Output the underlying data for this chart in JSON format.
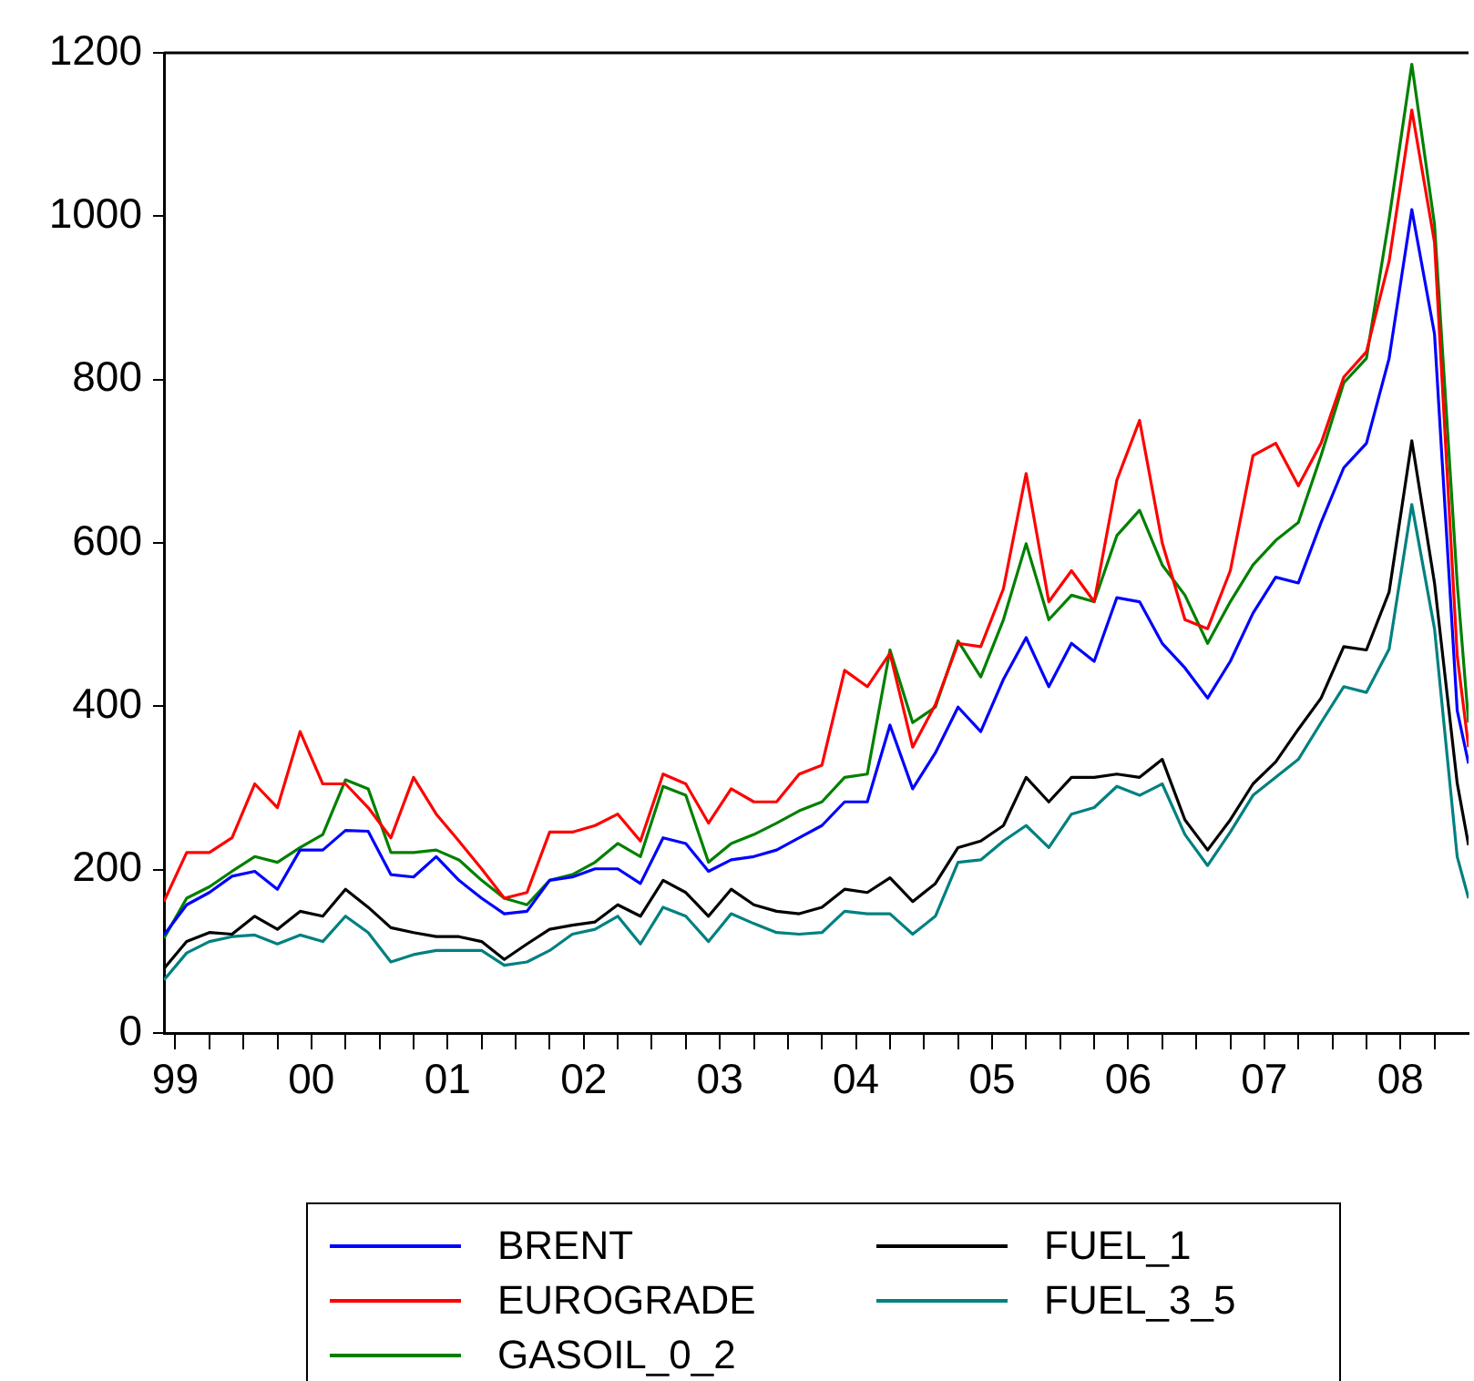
{
  "chart_data": {
    "type": "line",
    "legend": "bottom",
    "x": [
      "1999-06",
      "1999-08",
      "1999-10",
      "1999-12",
      "2000-02",
      "2000-04",
      "2000-06",
      "2000-08",
      "2000-10",
      "2000-12",
      "2001-02",
      "2001-04",
      "2001-06",
      "2001-08",
      "2001-10",
      "2001-12",
      "2002-02",
      "2002-04",
      "2002-06",
      "2002-08",
      "2002-10",
      "2002-12",
      "2003-02",
      "2003-04",
      "2003-06",
      "2003-08",
      "2003-10",
      "2003-12",
      "2004-02",
      "2004-04",
      "2004-06",
      "2004-08",
      "2004-10",
      "2004-12",
      "2005-02",
      "2005-04",
      "2005-06",
      "2005-08",
      "2005-10",
      "2005-12",
      "2006-02",
      "2006-04",
      "2006-06",
      "2006-08",
      "2006-10",
      "2006-12",
      "2007-02",
      "2007-04",
      "2007-06",
      "2007-08",
      "2007-10",
      "2007-12",
      "2008-02",
      "2008-04",
      "2008-06",
      "2008-08",
      "2008-10",
      "2008-12",
      "2009-01"
    ],
    "xlim": [
      "1999-06",
      "2009-01"
    ],
    "xticks": [
      {
        "value": "1999-07",
        "label": "99"
      },
      {
        "value": "1999-10",
        "label": null
      },
      {
        "value": "2000-01",
        "label": null
      },
      {
        "value": "2000-04",
        "label": null
      },
      {
        "value": "2000-07",
        "label": "00"
      },
      {
        "value": "2000-10",
        "label": null
      },
      {
        "value": "2001-01",
        "label": null
      },
      {
        "value": "2001-04",
        "label": null
      },
      {
        "value": "2001-07",
        "label": "01"
      },
      {
        "value": "2001-10",
        "label": null
      },
      {
        "value": "2002-01",
        "label": null
      },
      {
        "value": "2002-04",
        "label": null
      },
      {
        "value": "2002-07",
        "label": "02"
      },
      {
        "value": "2002-10",
        "label": null
      },
      {
        "value": "2003-01",
        "label": null
      },
      {
        "value": "2003-04",
        "label": null
      },
      {
        "value": "2003-07",
        "label": "03"
      },
      {
        "value": "2003-10",
        "label": null
      },
      {
        "value": "2004-01",
        "label": null
      },
      {
        "value": "2004-04",
        "label": null
      },
      {
        "value": "2004-07",
        "label": "04"
      },
      {
        "value": "2004-10",
        "label": null
      },
      {
        "value": "2005-01",
        "label": null
      },
      {
        "value": "2005-04",
        "label": null
      },
      {
        "value": "2005-07",
        "label": "05"
      },
      {
        "value": "2005-10",
        "label": null
      },
      {
        "value": "2006-01",
        "label": null
      },
      {
        "value": "2006-04",
        "label": null
      },
      {
        "value": "2006-07",
        "label": "06"
      },
      {
        "value": "2006-10",
        "label": null
      },
      {
        "value": "2007-01",
        "label": null
      },
      {
        "value": "2007-04",
        "label": null
      },
      {
        "value": "2007-07",
        "label": "07"
      },
      {
        "value": "2007-10",
        "label": null
      },
      {
        "value": "2008-01",
        "label": null
      },
      {
        "value": "2008-04",
        "label": null
      },
      {
        "value": "2008-07",
        "label": "08"
      },
      {
        "value": "2008-10",
        "label": null
      }
    ],
    "ylim": [
      0,
      1200
    ],
    "yticks": [
      0,
      200,
      400,
      600,
      800,
      1000,
      1200
    ],
    "series": [
      {
        "name": "BRENT",
        "color": "#0000ff",
        "values": [
          120,
          157,
          172,
          192,
          198,
          176,
          224,
          224,
          248,
          247,
          194,
          191,
          216,
          187,
          165,
          146,
          149,
          187,
          191,
          201,
          201,
          183,
          239,
          232,
          198,
          212,
          216,
          224,
          239,
          254,
          283,
          283,
          377,
          299,
          343,
          399,
          369,
          433,
          484,
          424,
          477,
          455,
          533,
          528,
          477,
          447,
          410,
          455,
          514,
          558,
          551,
          625,
          692,
          722,
          826,
          1008,
          856,
          395,
          330
        ]
      },
      {
        "name": "EUROGRADE",
        "color": "#ff0000",
        "values": [
          161,
          221,
          221,
          239,
          305,
          276,
          369,
          305,
          305,
          276,
          239,
          313,
          268,
          235,
          201,
          165,
          172,
          246,
          246,
          254,
          268,
          235,
          317,
          305,
          257,
          299,
          283,
          283,
          317,
          328,
          444,
          424,
          465,
          350,
          402,
          477,
          473,
          544,
          685,
          528,
          566,
          528,
          677,
          750,
          600,
          506,
          495,
          566,
          707,
          722,
          670,
          722,
          803,
          834,
          945,
          1130,
          968,
          462,
          350
        ]
      },
      {
        "name": "GASOIL_0_2",
        "color": "#008000",
        "values": [
          116,
          165,
          179,
          198,
          216,
          209,
          227,
          243,
          310,
          299,
          221,
          221,
          224,
          212,
          187,
          165,
          157,
          187,
          194,
          209,
          232,
          216,
          302,
          291,
          209,
          232,
          243,
          257,
          272,
          283,
          313,
          317,
          469,
          380,
          399,
          480,
          436,
          506,
          599,
          506,
          536,
          528,
          609,
          640,
          573,
          536,
          477,
          528,
          573,
          603,
          625,
          707,
          796,
          826,
          997,
          1186,
          990,
          551,
          380
        ]
      },
      {
        "name": "FUEL_1",
        "color": "#000000",
        "values": [
          79,
          112,
          123,
          121,
          143,
          127,
          149,
          143,
          176,
          154,
          129,
          123,
          118,
          118,
          112,
          90,
          109,
          127,
          132,
          136,
          157,
          143,
          187,
          172,
          143,
          176,
          157,
          149,
          146,
          154,
          176,
          172,
          190,
          161,
          183,
          227,
          235,
          254,
          313,
          283,
          313,
          313,
          317,
          313,
          335,
          261,
          224,
          261,
          305,
          332,
          372,
          410,
          473,
          469,
          540,
          725,
          551,
          306,
          230
        ]
      },
      {
        "name": "FUEL_3_5",
        "color": "#008080",
        "values": [
          65,
          98,
          112,
          118,
          120,
          109,
          120,
          112,
          143,
          123,
          87,
          96,
          101,
          101,
          101,
          83,
          87,
          101,
          121,
          127,
          143,
          109,
          154,
          143,
          112,
          146,
          134,
          123,
          121,
          123,
          149,
          146,
          146,
          121,
          143,
          209,
          212,
          235,
          254,
          227,
          268,
          276,
          302,
          291,
          305,
          243,
          205,
          246,
          291,
          313,
          335,
          380,
          424,
          417,
          470,
          647,
          495,
          216,
          165
        ]
      }
    ]
  }
}
